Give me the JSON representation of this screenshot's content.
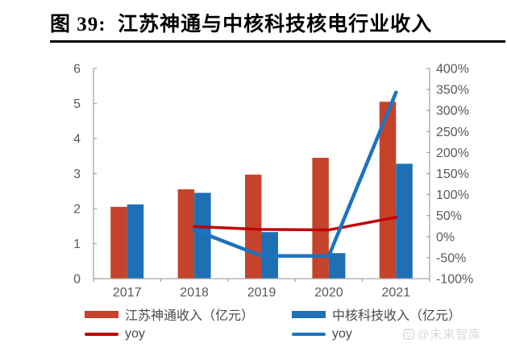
{
  "figure": {
    "title": "图 39:  江苏神通与中核科技核电行业收入"
  },
  "chart_data": {
    "type": "bar",
    "subtype": "grouped-bars-with-yoy-lines",
    "categories": [
      "2017",
      "2018",
      "2019",
      "2020",
      "2021"
    ],
    "bar_series": [
      {
        "name": "江苏神通收入（亿元）",
        "axis": "left",
        "color": "#C5432B",
        "values": [
          2.05,
          2.55,
          2.97,
          3.45,
          5.05
        ]
      },
      {
        "name": "中核科技收入（亿元）",
        "axis": "left",
        "color": "#1F6FB5",
        "values": [
          2.12,
          2.45,
          1.33,
          0.73,
          3.28
        ]
      }
    ],
    "line_series": [
      {
        "name": "yoy",
        "axis": "right",
        "color": "#C00000",
        "width": 3.5,
        "values": [
          null,
          24,
          17,
          16,
          46
        ]
      },
      {
        "name": "yoy",
        "axis": "right",
        "color": "#1E73BE",
        "width": 4.5,
        "values": [
          null,
          16,
          -46,
          -46,
          343
        ]
      }
    ],
    "left_axis": {
      "min": 0,
      "max": 6,
      "step": 1,
      "ticks": [
        "0",
        "1",
        "2",
        "3",
        "4",
        "5",
        "6"
      ]
    },
    "right_axis": {
      "min": -100,
      "max": 400,
      "step": 50,
      "suffix": "%",
      "ticks": [
        "-100%",
        "-50%",
        "0%",
        "50%",
        "100%",
        "150%",
        "200%",
        "250%",
        "300%",
        "350%",
        "400%"
      ]
    },
    "grid": false,
    "axis_color": "#A6A6A6",
    "tick_label_color": "#595959",
    "legend_position": "bottom"
  },
  "legend": {
    "items": [
      {
        "label": "江苏神通收入（亿元）",
        "color": "#C5432B",
        "type": "bar"
      },
      {
        "label": "中核科技收入（亿元）",
        "color": "#1F6FB5",
        "type": "bar"
      },
      {
        "label": "yoy",
        "color": "#C00000",
        "type": "line"
      },
      {
        "label": "yoy",
        "color": "#1E73BE",
        "type": "line"
      }
    ]
  },
  "watermark": {
    "text": "@未来智库"
  }
}
